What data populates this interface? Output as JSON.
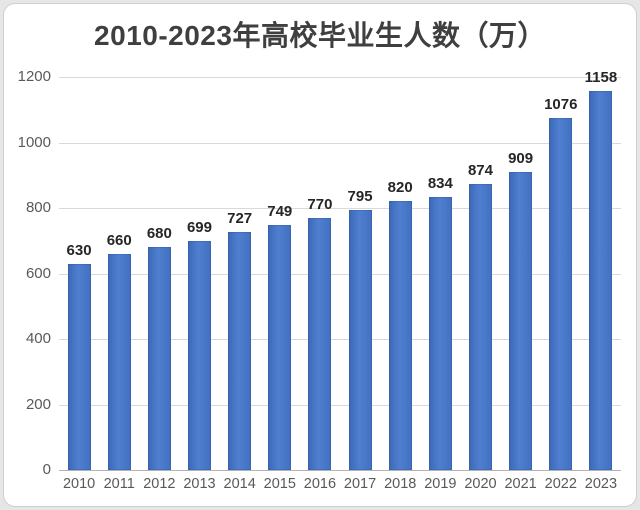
{
  "frame": {
    "background_color": "#e6e6e6",
    "card_color": "#ffffff",
    "card_border_color": "#cfcfcf"
  },
  "chart_data": {
    "type": "bar",
    "title": "2010-2023年高校毕业生人数（万）",
    "categories": [
      "2010",
      "2011",
      "2012",
      "2013",
      "2014",
      "2015",
      "2016",
      "2017",
      "2018",
      "2019",
      "2020",
      "2021",
      "2022",
      "2023"
    ],
    "values": [
      630,
      660,
      680,
      699,
      727,
      749,
      770,
      795,
      820,
      834,
      874,
      909,
      1076,
      1158
    ],
    "xlabel": "",
    "ylabel": "",
    "ylim": [
      0,
      1200
    ],
    "yticks": [
      1200,
      1000,
      800,
      600,
      400,
      200,
      0
    ],
    "grid": true,
    "legend_position": "none",
    "bar_color": "#4472c4",
    "value_label_color": "#262626",
    "axis_tick_color": "#595959",
    "title_color": "#3f3f3f",
    "gridline_color": "#d9d9d9"
  }
}
